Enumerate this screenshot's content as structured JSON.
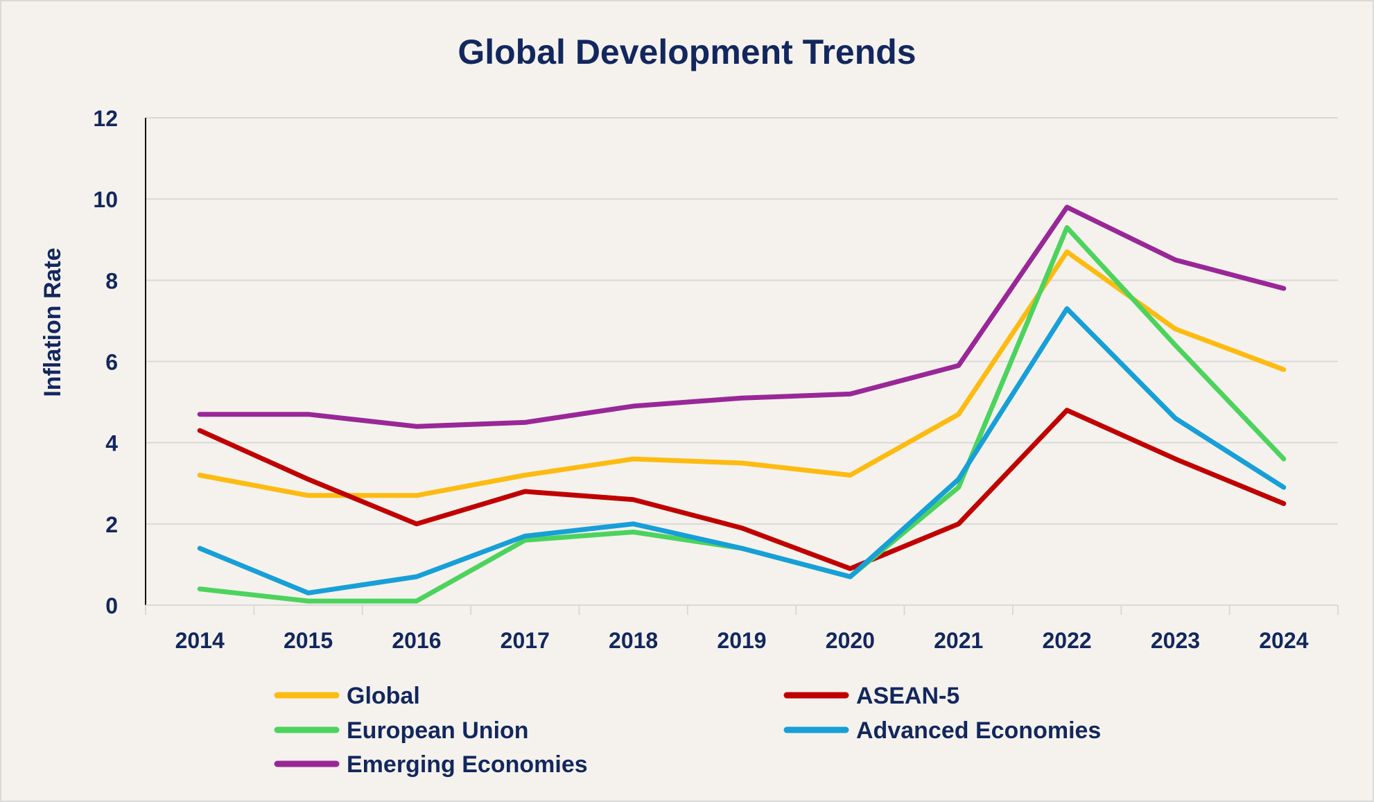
{
  "chart_data": {
    "type": "line",
    "title": "Global Development Trends",
    "xlabel": "",
    "ylabel": "Inflation Rate",
    "ylim": [
      0,
      12
    ],
    "yticks": [
      "0",
      "2",
      "4",
      "6",
      "8",
      "10",
      "12"
    ],
    "categories": [
      "2014",
      "2015",
      "2016",
      "2017",
      "2018",
      "2019",
      "2020",
      "2021",
      "2022",
      "2023",
      "2024"
    ],
    "grid": true,
    "legend_position": "bottom",
    "series": [
      {
        "name": "Global",
        "color": "#FDBB12",
        "values": [
          3.2,
          2.7,
          2.7,
          3.2,
          3.6,
          3.5,
          3.2,
          4.7,
          8.7,
          6.8,
          5.8
        ]
      },
      {
        "name": "ASEAN-5",
        "color": "#C00000",
        "values": [
          4.3,
          3.1,
          2.0,
          2.8,
          2.6,
          1.9,
          0.9,
          2.0,
          4.8,
          3.6,
          2.5
        ]
      },
      {
        "name": "European Union",
        "color": "#4CD35D",
        "values": [
          0.4,
          0.1,
          0.1,
          1.6,
          1.8,
          1.4,
          0.7,
          2.9,
          9.3,
          6.4,
          3.6
        ]
      },
      {
        "name": "Advanced Economies",
        "color": "#179FD7",
        "values": [
          1.4,
          0.3,
          0.7,
          1.7,
          2.0,
          1.4,
          0.7,
          3.1,
          7.3,
          4.6,
          2.9
        ]
      },
      {
        "name": "Emerging Economies",
        "color": "#992797",
        "values": [
          4.7,
          4.7,
          4.4,
          4.5,
          4.9,
          5.1,
          5.2,
          5.9,
          9.8,
          8.5,
          7.8
        ]
      }
    ]
  },
  "colors": {
    "background": "#F5F2ED",
    "frame": "#D9D9D9",
    "text": "#12275E",
    "grid": "#D9D9D9",
    "axis": "#000000"
  }
}
